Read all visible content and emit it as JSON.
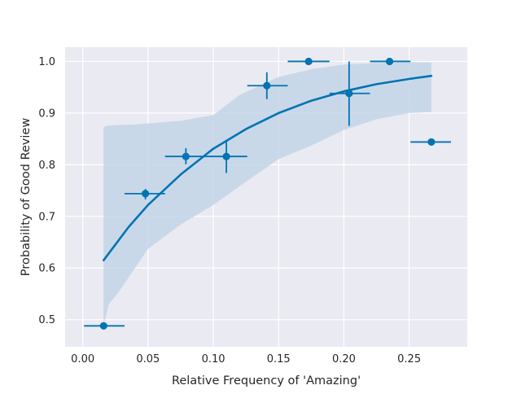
{
  "chart_data": {
    "type": "scatter",
    "title": "",
    "xlabel": "Relative Frequency of 'Amazing'",
    "ylabel": "Probability of Good Review",
    "xlim": [
      -0.0135,
      0.2945
    ],
    "ylim": [
      0.4475,
      1.0275
    ],
    "xticks": [
      0.0,
      0.05,
      0.1,
      0.15,
      0.2,
      0.25
    ],
    "xtick_labels": [
      "0.00",
      "0.05",
      "0.10",
      "0.15",
      "0.20",
      "0.25"
    ],
    "yticks": [
      0.5,
      0.6,
      0.7,
      0.8,
      0.9,
      1.0
    ],
    "ytick_labels": [
      "0.5",
      "0.6",
      "0.7",
      "0.8",
      "0.9",
      "1.0"
    ],
    "grid": true,
    "colors": {
      "point": "#0173b2",
      "band": "#c3d5e8",
      "background": "#eaeaf2",
      "grid": "#ffffff"
    },
    "points": [
      {
        "x": 0.016,
        "y": 0.488,
        "xerr": [
          0.001,
          0.032
        ],
        "yerr": [
          0.488,
          0.488
        ]
      },
      {
        "x": 0.048,
        "y": 0.744,
        "xerr": [
          0.032,
          0.063
        ],
        "yerr": [
          0.733,
          0.753
        ]
      },
      {
        "x": 0.079,
        "y": 0.816,
        "xerr": [
          0.063,
          0.095
        ],
        "yerr": [
          0.801,
          0.832
        ]
      },
      {
        "x": 0.11,
        "y": 0.816,
        "xerr": [
          0.095,
          0.126
        ],
        "yerr": [
          0.784,
          0.848
        ]
      },
      {
        "x": 0.141,
        "y": 0.953,
        "xerr": [
          0.126,
          0.157
        ],
        "yerr": [
          0.927,
          0.979
        ]
      },
      {
        "x": 0.173,
        "y": 1.0,
        "xerr": [
          0.157,
          0.189
        ],
        "yerr": [
          1.0,
          1.0
        ]
      },
      {
        "x": 0.204,
        "y": 0.938,
        "xerr": [
          0.189,
          0.22
        ],
        "yerr": [
          0.875,
          1.0
        ]
      },
      {
        "x": 0.235,
        "y": 1.0,
        "xerr": [
          0.22,
          0.251
        ],
        "yerr": [
          1.0,
          1.0
        ]
      },
      {
        "x": 0.267,
        "y": 0.844,
        "xerr": [
          0.251,
          0.282
        ],
        "yerr": [
          0.844,
          0.844
        ]
      }
    ],
    "fit": {
      "x": [
        0.016,
        0.035,
        0.05,
        0.075,
        0.1,
        0.125,
        0.15,
        0.175,
        0.2,
        0.225,
        0.25,
        0.267
      ],
      "y": [
        0.615,
        0.679,
        0.722,
        0.781,
        0.831,
        0.869,
        0.9,
        0.924,
        0.942,
        0.956,
        0.966,
        0.972
      ]
    },
    "band": {
      "x": [
        0.016,
        0.02,
        0.028,
        0.04,
        0.05,
        0.075,
        0.1,
        0.12,
        0.15,
        0.175,
        0.2,
        0.225,
        0.25,
        0.267
      ],
      "lower": [
        0.49,
        0.53,
        0.555,
        0.6,
        0.637,
        0.684,
        0.722,
        0.758,
        0.811,
        0.837,
        0.867,
        0.888,
        0.9,
        0.902
      ],
      "upper": [
        0.873,
        0.876,
        0.877,
        0.878,
        0.88,
        0.885,
        0.896,
        0.935,
        0.97,
        0.985,
        0.994,
        0.997,
        0.998,
        0.998
      ]
    }
  }
}
